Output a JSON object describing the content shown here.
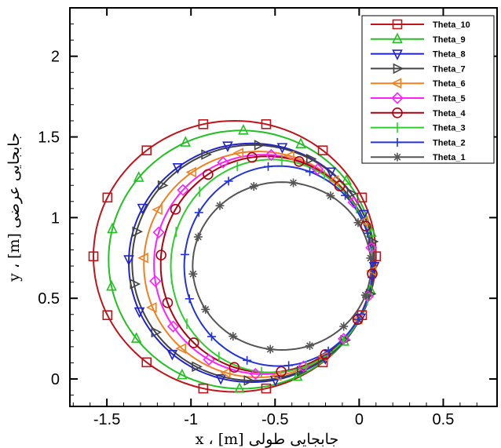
{
  "chart_data": {
    "type": "line",
    "title": "",
    "xlabel": "جابجایی طولی x ، [m]",
    "ylabel": "جابجایی عرضی y ، [m]",
    "xlim": [
      -1.72,
      0.82
    ],
    "ylim": [
      -0.17,
      2.3
    ],
    "xticks": [
      -1.5,
      -1,
      -0.5,
      0,
      0.5
    ],
    "xtick_labels": [
      "-1.5",
      "-1",
      "-0.5",
      "0",
      "0.5"
    ],
    "yticks": [
      0,
      0.5,
      1,
      1.5,
      2
    ],
    "ytick_labels": [
      "0",
      "0.5",
      "1",
      "1.5",
      "2"
    ],
    "grid": false,
    "legend_position": "top-right",
    "series": [
      {
        "name": "Theta_10",
        "color": "#c0141c",
        "marker": "square",
        "cx": -0.74,
        "cy": 0.76,
        "rx": 0.84,
        "ry": 0.84
      },
      {
        "name": "Theta_9",
        "color": "#22c022",
        "marker": "triangle-up",
        "cx": -0.7,
        "cy": 0.74,
        "rx": 0.79,
        "ry": 0.8
      },
      {
        "name": "Theta_8",
        "color": "#2222cc",
        "marker": "triangle-down",
        "cx": -0.64,
        "cy": 0.72,
        "rx": 0.73,
        "ry": 0.74
      },
      {
        "name": "Theta_7",
        "color": "#444444",
        "marker": "triangle-right",
        "cx": -0.63,
        "cy": 0.72,
        "rx": 0.72,
        "ry": 0.73
      },
      {
        "name": "Theta_6",
        "color": "#f08020",
        "marker": "triangle-left",
        "cx": -0.6,
        "cy": 0.71,
        "rx": 0.68,
        "ry": 0.7
      },
      {
        "name": "Theta_5",
        "color": "#ff20ff",
        "marker": "diamond",
        "cx": -0.57,
        "cy": 0.71,
        "rx": 0.65,
        "ry": 0.68
      },
      {
        "name": "Theta_4",
        "color": "#b00010",
        "marker": "circle",
        "cx": -0.55,
        "cy": 0.71,
        "rx": 0.63,
        "ry": 0.67
      },
      {
        "name": "Theta_3",
        "color": "#30cc30",
        "marker": "vbar",
        "cx": -0.52,
        "cy": 0.7,
        "rx": 0.6,
        "ry": 0.66
      },
      {
        "name": "Theta_2",
        "color": "#2233dd",
        "marker": "plus",
        "cx": -0.48,
        "cy": 0.7,
        "rx": 0.56,
        "ry": 0.62
      },
      {
        "name": "Theta_1",
        "color": "#555555",
        "marker": "asterisk",
        "cx": -0.46,
        "cy": 0.7,
        "rx": 0.53,
        "ry": 0.52
      }
    ]
  }
}
